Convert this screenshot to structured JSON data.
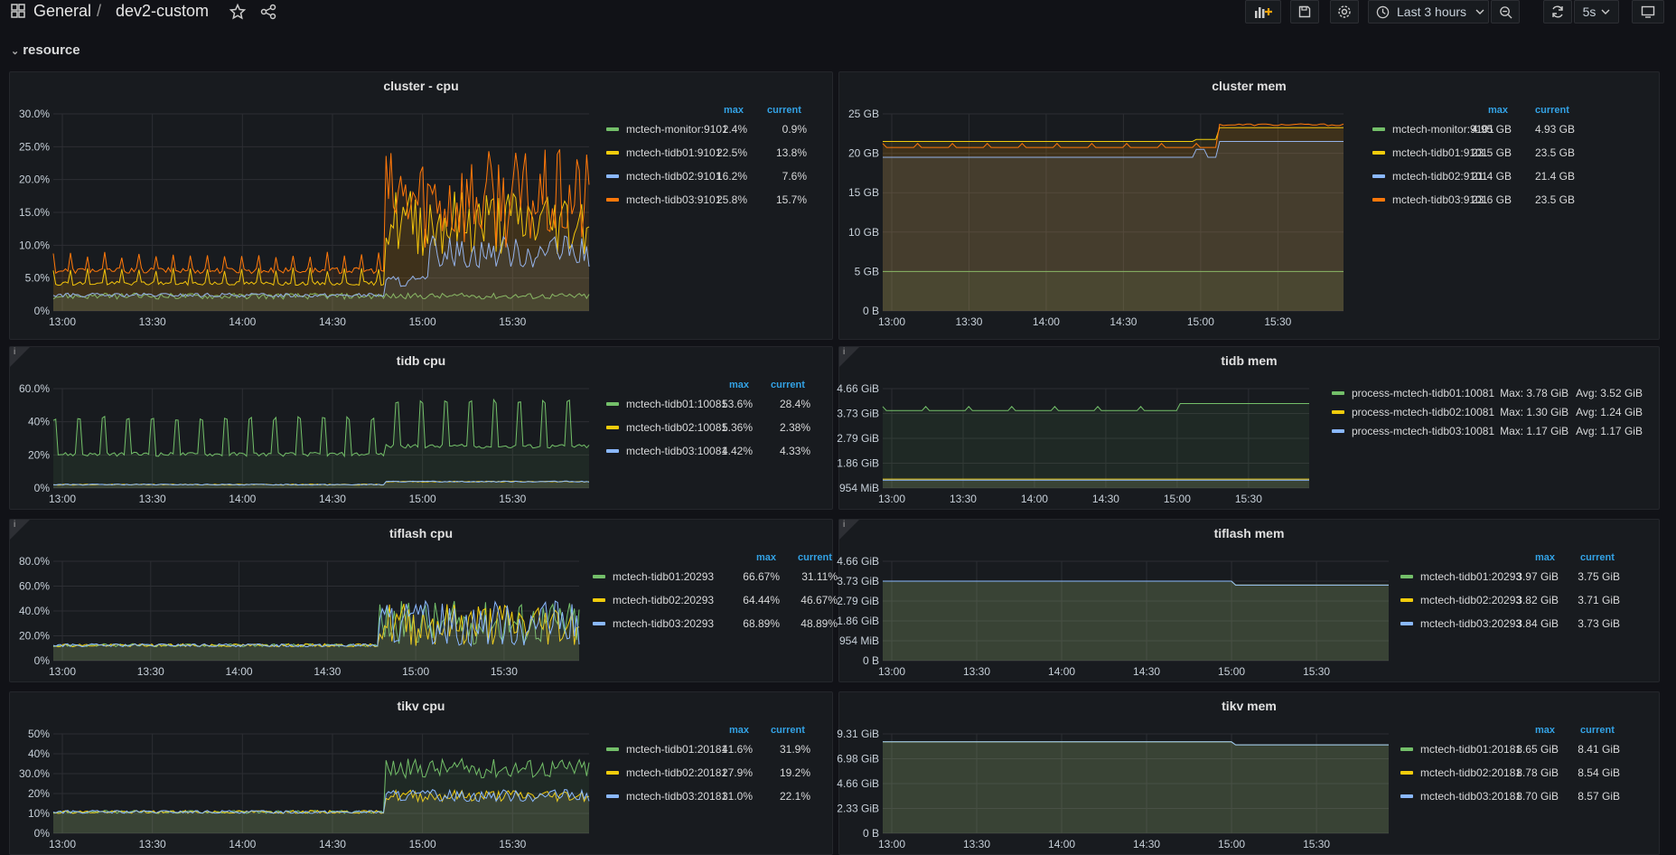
{
  "breadcrumb": {
    "folder": "General",
    "separator": "/",
    "dashboard": "dev2-custom"
  },
  "toolbar": {
    "time_range": "Last 3 hours",
    "refresh_interval": "5s"
  },
  "icons": [
    "apps-icon",
    "star-icon",
    "share-icon",
    "add-panel-icon",
    "save-icon",
    "settings-icon",
    "clock-icon",
    "zoom-out-icon",
    "refresh-icon",
    "tv-icon"
  ],
  "colors": {
    "green": "#73bf69",
    "yellow": "#f2cc0c",
    "cyan": "#8ab8ff",
    "blue": "#5794f2",
    "orange": "#ff780a",
    "accent": "#33a2e5"
  },
  "row": {
    "title": "resource"
  },
  "legend_headers": {
    "max": "max",
    "current": "current"
  },
  "x_ticks": [
    "13:00",
    "13:30",
    "14:00",
    "14:30",
    "15:00",
    "15:30"
  ],
  "panels": [
    {
      "title": "cluster - cpu",
      "info": false,
      "y_ticks": [
        "30.0%",
        "25.0%",
        "20.0%",
        "15.0%",
        "10.0%",
        "5.0%",
        "0%"
      ],
      "legend": [
        {
          "name": "mctech-monitor:9101",
          "max": "2.4%",
          "current": "0.9%",
          "color": "#73bf69"
        },
        {
          "name": "mctech-tidb01:9101",
          "max": "22.5%",
          "current": "13.8%",
          "color": "#f2cc0c"
        },
        {
          "name": "mctech-tidb02:9101",
          "max": "16.2%",
          "current": "7.6%",
          "color": "#8ab8ff"
        },
        {
          "name": "mctech-tidb03:9101",
          "max": "25.8%",
          "current": "15.7%",
          "color": "#ff780a"
        }
      ]
    },
    {
      "title": "cluster mem",
      "info": false,
      "y_ticks": [
        "25 GB",
        "20 GB",
        "15 GB",
        "10 GB",
        "5 GB",
        "0 B"
      ],
      "legend": [
        {
          "name": "mctech-monitor:9101",
          "max": "4.95 GB",
          "current": "4.93 GB",
          "color": "#73bf69"
        },
        {
          "name": "mctech-tidb01:9101",
          "max": "23.5 GB",
          "current": "23.5 GB",
          "color": "#f2cc0c"
        },
        {
          "name": "mctech-tidb02:9101",
          "max": "21.4 GB",
          "current": "21.4 GB",
          "color": "#8ab8ff"
        },
        {
          "name": "mctech-tidb03:9101",
          "max": "23.6 GB",
          "current": "23.5 GB",
          "color": "#ff780a"
        }
      ]
    },
    {
      "title": "tidb cpu",
      "info": true,
      "y_ticks": [
        "60.0%",
        "40%",
        "20%",
        "0%"
      ],
      "legend": [
        {
          "name": "mctech-tidb01:10081",
          "max": "53.6%",
          "current": "28.4%",
          "color": "#73bf69"
        },
        {
          "name": "mctech-tidb02:10081",
          "max": "5.36%",
          "current": "2.38%",
          "color": "#f2cc0c"
        },
        {
          "name": "mctech-tidb03:10081",
          "max": "4.42%",
          "current": "4.33%",
          "color": "#8ab8ff"
        }
      ]
    },
    {
      "title": "tidb mem",
      "info": true,
      "y_ticks": [
        "4.66 GiB",
        "3.73 GiB",
        "2.79 GiB",
        "1.86 GiB",
        "954 MiB"
      ],
      "legend_inline": [
        {
          "name": "process-mctech-tidb01:10081",
          "max": "Max: 3.78 GiB",
          "avg": "Avg: 3.52 GiB",
          "color": "#73bf69"
        },
        {
          "name": "process-mctech-tidb02:10081",
          "max": "Max: 1.30 GiB",
          "avg": "Avg: 1.24 GiB",
          "color": "#f2cc0c"
        },
        {
          "name": "process-mctech-tidb03:10081",
          "max": "Max: 1.17 GiB",
          "avg": "Avg: 1.17 GiB",
          "color": "#8ab8ff"
        }
      ]
    },
    {
      "title": "tiflash cpu",
      "info": true,
      "y_ticks": [
        "80.0%",
        "60.0%",
        "40.0%",
        "20.0%",
        "0%"
      ],
      "legend": [
        {
          "name": "mctech-tidb01:20293",
          "max": "66.67%",
          "current": "31.11%",
          "color": "#73bf69"
        },
        {
          "name": "mctech-tidb02:20293",
          "max": "64.44%",
          "current": "46.67%",
          "color": "#f2cc0c"
        },
        {
          "name": "mctech-tidb03:20293",
          "max": "68.89%",
          "current": "48.89%",
          "color": "#8ab8ff"
        }
      ]
    },
    {
      "title": "tiflash mem",
      "info": true,
      "y_ticks": [
        "4.66 GiB",
        "3.73 GiB",
        "2.79 GiB",
        "1.86 GiB",
        "954 MiB",
        "0 B"
      ],
      "legend": [
        {
          "name": "mctech-tidb01:20293",
          "max": "3.97 GiB",
          "current": "3.75 GiB",
          "color": "#73bf69"
        },
        {
          "name": "mctech-tidb02:20293",
          "max": "3.82 GiB",
          "current": "3.71 GiB",
          "color": "#f2cc0c"
        },
        {
          "name": "mctech-tidb03:20293",
          "max": "3.84 GiB",
          "current": "3.73 GiB",
          "color": "#8ab8ff"
        }
      ]
    },
    {
      "title": "tikv cpu",
      "info": false,
      "y_ticks": [
        "50%",
        "40%",
        "30.0%",
        "20%",
        "10%",
        "0%"
      ],
      "legend": [
        {
          "name": "mctech-tidb01:20181",
          "max": "41.6%",
          "current": "31.9%",
          "color": "#73bf69"
        },
        {
          "name": "mctech-tidb02:20181",
          "max": "27.9%",
          "current": "19.2%",
          "color": "#f2cc0c"
        },
        {
          "name": "mctech-tidb03:20181",
          "max": "31.0%",
          "current": "22.1%",
          "color": "#8ab8ff"
        }
      ]
    },
    {
      "title": "tikv mem",
      "info": false,
      "y_ticks": [
        "9.31 GiB",
        "6.98 GiB",
        "4.66 GiB",
        "2.33 GiB",
        "0 B"
      ],
      "legend": [
        {
          "name": "mctech-tidb01:20181",
          "max": "8.65 GiB",
          "current": "8.41 GiB",
          "color": "#73bf69"
        },
        {
          "name": "mctech-tidb02:20181",
          "max": "8.78 GiB",
          "current": "8.54 GiB",
          "color": "#f2cc0c"
        },
        {
          "name": "mctech-tidb03:20181",
          "max": "8.70 GiB",
          "current": "8.57 GiB",
          "color": "#8ab8ff"
        }
      ]
    }
  ]
}
